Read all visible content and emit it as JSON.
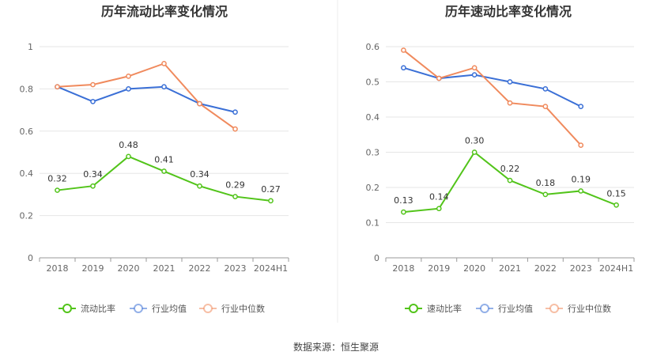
{
  "source": "数据来源：恒生聚源",
  "colors": {
    "company": "#52c41a",
    "avg": "#3a6fd6",
    "median": "#f08a5d",
    "grid": "#e6e6e6",
    "axis": "#cccccc"
  },
  "legend": [
    "流动比率",
    "行业均值",
    "行业中位数"
  ],
  "chart_data": [
    {
      "type": "line",
      "title": "历年流动比率变化情况",
      "categories": [
        "2018",
        "2019",
        "2020",
        "2021",
        "2022",
        "2023",
        "2024H1"
      ],
      "ylim": [
        0,
        1
      ],
      "yticks": [
        "0",
        "0.2",
        "0.4",
        "0.6",
        "0.8",
        "1"
      ],
      "ytick_values": [
        0,
        0.2,
        0.4,
        0.6,
        0.8,
        1
      ],
      "grid": true,
      "legend_position": "bottom",
      "series": [
        {
          "name": "流动比率",
          "values": [
            0.32,
            0.34,
            0.48,
            0.41,
            0.34,
            0.29,
            0.27
          ],
          "labels": [
            "0.32",
            "0.34",
            "0.48",
            "0.41",
            "0.34",
            "0.29",
            "0.27"
          ]
        },
        {
          "name": "行业均值",
          "values": [
            0.81,
            0.74,
            0.8,
            0.81,
            0.73,
            0.69,
            null
          ]
        },
        {
          "name": "行业中位数",
          "values": [
            0.81,
            0.82,
            0.86,
            0.92,
            0.73,
            0.61,
            null
          ]
        }
      ]
    },
    {
      "type": "line",
      "title": "历年速动比率变化情况",
      "categories": [
        "2018",
        "2019",
        "2020",
        "2021",
        "2022",
        "2023",
        "2024H1"
      ],
      "ylim": [
        0,
        0.6
      ],
      "yticks": [
        "0",
        "0.1",
        "0.2",
        "0.3",
        "0.4",
        "0.5",
        "0.6"
      ],
      "ytick_values": [
        0,
        0.1,
        0.2,
        0.3,
        0.4,
        0.5,
        0.6
      ],
      "grid": true,
      "legend_position": "bottom",
      "series": [
        {
          "name": "速动比率",
          "values": [
            0.13,
            0.14,
            0.3,
            0.22,
            0.18,
            0.19,
            0.15
          ],
          "labels": [
            "0.13",
            "0.14",
            "0.30",
            "0.22",
            "0.18",
            "0.19",
            "0.15"
          ]
        },
        {
          "name": "行业均值",
          "values": [
            0.54,
            0.51,
            0.52,
            0.5,
            0.48,
            0.43,
            null
          ]
        },
        {
          "name": "行业中位数",
          "values": [
            0.59,
            0.51,
            0.54,
            0.44,
            0.43,
            0.32,
            null
          ]
        }
      ]
    }
  ]
}
